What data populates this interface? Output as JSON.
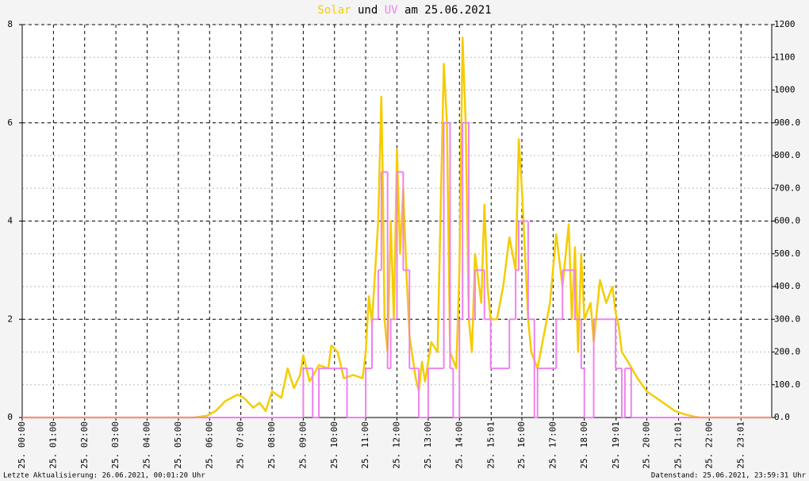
{
  "chart_data": {
    "type": "line",
    "title_connector": "und",
    "title_suffix": "am 25.06.2021",
    "footer_left": "Letzte Aktualisierung: 26.06.2021, 00:01:20 Uhr",
    "footer_right": "Datenstand: 25.06.2021, 23:59:31 Uhr",
    "grid": true,
    "xlim": [
      0,
      24
    ],
    "xticks": [
      {
        "value": 0,
        "label": "25. 00:00"
      },
      {
        "value": 1,
        "label": "25. 01:00"
      },
      {
        "value": 2,
        "label": "25. 02:00"
      },
      {
        "value": 3,
        "label": "25. 03:00"
      },
      {
        "value": 4,
        "label": "25. 04:00"
      },
      {
        "value": 5,
        "label": "25. 05:00"
      },
      {
        "value": 6,
        "label": "25. 06:00"
      },
      {
        "value": 7,
        "label": "25. 07:00"
      },
      {
        "value": 8,
        "label": "25. 08:00"
      },
      {
        "value": 9,
        "label": "25. 09:00"
      },
      {
        "value": 10,
        "label": "25. 10:00"
      },
      {
        "value": 11,
        "label": "25. 11:00"
      },
      {
        "value": 12,
        "label": "25. 12:00"
      },
      {
        "value": 13,
        "label": "25. 13:00"
      },
      {
        "value": 14,
        "label": "25. 14:00"
      },
      {
        "value": 15.017,
        "label": "25. 15:01"
      },
      {
        "value": 16,
        "label": "25. 16:00"
      },
      {
        "value": 17,
        "label": "25. 17:00"
      },
      {
        "value": 18,
        "label": "25. 18:00"
      },
      {
        "value": 19.017,
        "label": "25. 19:01"
      },
      {
        "value": 20,
        "label": "25. 20:00"
      },
      {
        "value": 21.017,
        "label": "25. 21:01"
      },
      {
        "value": 22,
        "label": "25. 22:00"
      },
      {
        "value": 23.017,
        "label": "25. 23:01"
      }
    ],
    "ylim": [
      0,
      8
    ],
    "yticks": [
      0,
      2,
      4,
      6,
      8
    ],
    "y2lim": [
      0,
      1200
    ],
    "y2ticks": [
      {
        "value": 0,
        "label": "0.0"
      },
      {
        "value": 100,
        "label": "100.0"
      },
      {
        "value": 200,
        "label": "200.0"
      },
      {
        "value": 300,
        "label": "300.0"
      },
      {
        "value": 400,
        "label": "400.0"
      },
      {
        "value": 500,
        "label": "500.0"
      },
      {
        "value": 600,
        "label": "600.0"
      },
      {
        "value": 700,
        "label": "700.0"
      },
      {
        "value": 800,
        "label": "800.0"
      },
      {
        "value": 900,
        "label": "900.0"
      },
      1000,
      1100,
      1200
    ],
    "series": [
      {
        "name": "Solar",
        "color": "#f5cc00",
        "axis": "y2",
        "x": [
          0,
          5.5,
          5.9,
          6.2,
          6.5,
          6.9,
          7.1,
          7.4,
          7.6,
          7.8,
          8.0,
          8.3,
          8.5,
          8.7,
          8.9,
          9.0,
          9.2,
          9.5,
          9.8,
          9.9,
          10.1,
          10.3,
          10.6,
          10.9,
          11.0,
          11.1,
          11.2,
          11.4,
          11.5,
          11.55,
          11.6,
          11.7,
          11.8,
          11.9,
          12.0,
          12.1,
          12.2,
          12.3,
          12.4,
          12.6,
          12.7,
          12.8,
          12.9,
          13.1,
          13.3,
          13.5,
          13.6,
          13.7,
          13.9,
          14.0,
          14.1,
          14.2,
          14.3,
          14.4,
          14.5,
          14.7,
          14.8,
          14.9,
          15.0,
          15.2,
          15.4,
          15.6,
          15.8,
          15.9,
          16.0,
          16.1,
          16.2,
          16.3,
          16.5,
          16.7,
          16.9,
          17.1,
          17.3,
          17.5,
          17.6,
          17.7,
          17.8,
          17.9,
          18.0,
          18.2,
          18.3,
          18.5,
          18.7,
          18.9,
          19.0,
          19.1,
          19.2,
          19.4,
          19.7,
          20.0,
          20.3,
          20.6,
          20.9,
          21.2,
          21.5,
          21.7,
          24
        ],
        "values": [
          0,
          0,
          5,
          20,
          50,
          70,
          60,
          30,
          45,
          20,
          80,
          60,
          150,
          90,
          130,
          190,
          110,
          160,
          150,
          220,
          200,
          120,
          130,
          120,
          200,
          370,
          290,
          600,
          980,
          700,
          300,
          200,
          600,
          300,
          820,
          500,
          700,
          450,
          250,
          120,
          80,
          170,
          110,
          230,
          200,
          1080,
          900,
          200,
          150,
          450,
          1160,
          900,
          300,
          200,
          500,
          350,
          650,
          400,
          300,
          300,
          400,
          550,
          450,
          850,
          700,
          500,
          300,
          200,
          150,
          250,
          350,
          560,
          400,
          590,
          300,
          520,
          200,
          500,
          300,
          350,
          230,
          420,
          350,
          400,
          320,
          280,
          200,
          170,
          120,
          80,
          60,
          40,
          20,
          10,
          3,
          0,
          0
        ]
      },
      {
        "name": "UV",
        "color": "#ee82ee",
        "axis": "y",
        "x": [
          0,
          9.0,
          9.3,
          9.5,
          10.4,
          11.0,
          11.2,
          11.4,
          11.5,
          11.7,
          11.8,
          12.0,
          12.2,
          12.4,
          12.7,
          13.0,
          13.5,
          13.7,
          13.8,
          14.0,
          14.1,
          14.3,
          14.5,
          14.8,
          15.0,
          15.6,
          15.8,
          15.9,
          16.2,
          16.4,
          16.5,
          17.1,
          17.3,
          17.7,
          17.9,
          18.0,
          18.3,
          19.0,
          19.2,
          19.3,
          19.5
        ],
        "values": [
          0,
          1,
          0,
          1,
          0,
          1,
          2,
          3,
          5,
          1,
          2,
          5,
          3,
          1,
          0,
          1,
          6,
          1,
          0,
          2,
          6,
          2,
          3,
          2,
          1,
          2,
          3,
          4,
          2,
          0,
          1,
          2,
          3,
          2,
          1,
          0,
          2,
          1,
          0,
          1,
          0
        ]
      }
    ]
  }
}
